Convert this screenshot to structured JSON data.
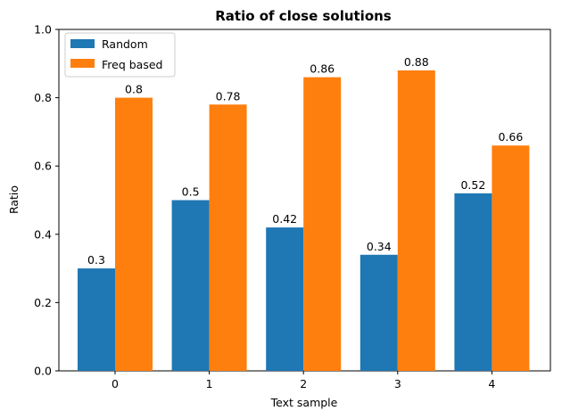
{
  "chart_data": {
    "type": "bar",
    "title": "Ratio of close solutions",
    "xlabel": "Text sample",
    "ylabel": "Ratio",
    "categories": [
      "0",
      "1",
      "2",
      "3",
      "4"
    ],
    "ylim": [
      0,
      1.0
    ],
    "yticks": [
      "0.0",
      "0.2",
      "0.4",
      "0.6",
      "0.8",
      "1.0"
    ],
    "legend_position": "top-left",
    "grid": false,
    "series": [
      {
        "name": "Random",
        "color": "#1f77b4",
        "values": [
          0.3,
          0.5,
          0.42,
          0.34,
          0.52
        ],
        "labels": [
          "0.3",
          "0.5",
          "0.42",
          "0.34",
          "0.52"
        ]
      },
      {
        "name": "Freq based",
        "color": "#ff7f0e",
        "values": [
          0.8,
          0.78,
          0.86,
          0.88,
          0.66
        ],
        "labels": [
          "0.8",
          "0.78",
          "0.86",
          "0.88",
          "0.66"
        ]
      }
    ]
  }
}
